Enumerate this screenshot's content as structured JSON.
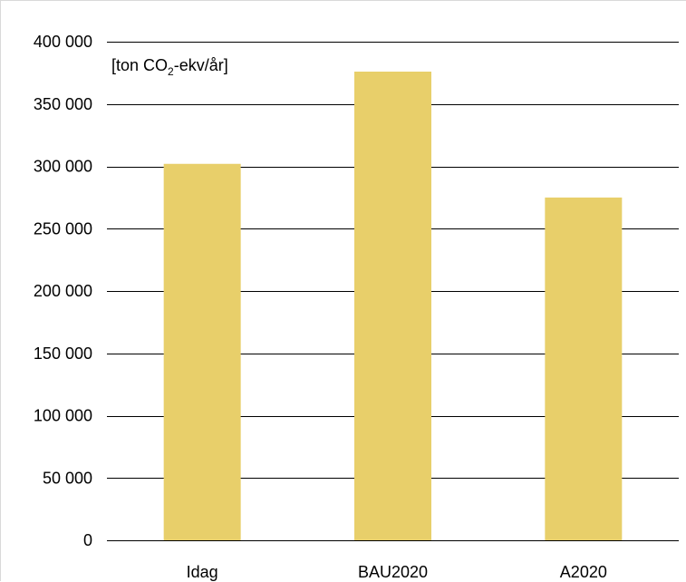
{
  "chart_data": {
    "type": "bar",
    "categories": [
      "Idag",
      "BAU2020",
      "A2020"
    ],
    "values": [
      302000,
      376000,
      275000
    ],
    "ylabel": "[ton CO2-ekv/år]",
    "ylabel_parts": {
      "prefix": "[ton CO",
      "subscript": "2",
      "suffix": "-ekv/år]"
    },
    "ylim": [
      0,
      400000
    ],
    "yticks": [
      0,
      50000,
      100000,
      150000,
      200000,
      250000,
      300000,
      350000,
      400000
    ],
    "ytick_labels": [
      "0",
      "50 000",
      "100 000",
      "150 000",
      "200 000",
      "250 000",
      "300 000",
      "350 000",
      "400 000"
    ],
    "grid": true,
    "legend": "none",
    "bar_color": "#e8cf6a",
    "grid_color": "#000000"
  }
}
